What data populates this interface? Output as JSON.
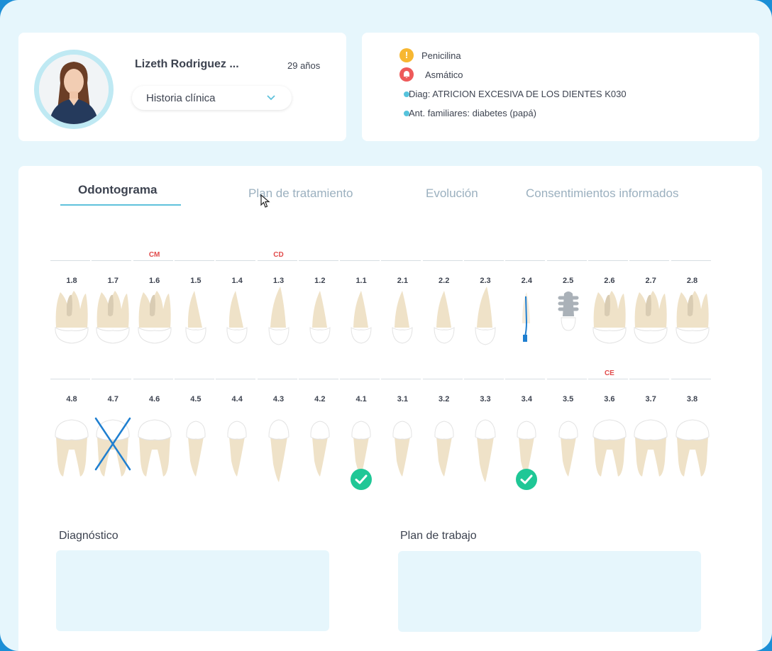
{
  "patient": {
    "name": "Lizeth Rodriguez ...",
    "age": "29 años",
    "record_select": "Historia clínica"
  },
  "alerts": [
    {
      "type": "warning",
      "icon": "exclamation-icon",
      "color": "#f7b731",
      "text": "Penicilina"
    },
    {
      "type": "danger",
      "icon": "bell-icon",
      "color": "#ee5a5a",
      "text": "Asmático"
    },
    {
      "type": "info",
      "icon": "dot-icon",
      "color": "#56c3dc",
      "text": "Diag: ATRICION EXCESIVA DE LOS DIENTES K030"
    },
    {
      "type": "info",
      "icon": "dot-icon",
      "color": "#56c3dc",
      "text": "Ant. familiares: diabetes (papá)"
    }
  ],
  "tabs": [
    {
      "label": "Odontograma",
      "active": true
    },
    {
      "label": "Plan de tratamiento",
      "active": false
    },
    {
      "label": "Evolución",
      "active": false
    },
    {
      "label": "Consentimientos informados",
      "active": false
    }
  ],
  "odontogram": {
    "upper": [
      {
        "num": "1.8",
        "label": "",
        "type": "molar"
      },
      {
        "num": "1.7",
        "label": "",
        "type": "molar"
      },
      {
        "num": "1.6",
        "label": "CM",
        "type": "molar"
      },
      {
        "num": "1.5",
        "label": "",
        "type": "premolar"
      },
      {
        "num": "1.4",
        "label": "",
        "type": "premolar"
      },
      {
        "num": "1.3",
        "label": "CD",
        "type": "canine"
      },
      {
        "num": "1.2",
        "label": "",
        "type": "incisor"
      },
      {
        "num": "1.1",
        "label": "",
        "type": "incisor"
      },
      {
        "num": "2.1",
        "label": "",
        "type": "incisor"
      },
      {
        "num": "2.2",
        "label": "",
        "type": "incisor"
      },
      {
        "num": "2.3",
        "label": "",
        "type": "canine"
      },
      {
        "num": "2.4",
        "label": "",
        "type": "endodontic"
      },
      {
        "num": "2.5",
        "label": "",
        "type": "implant"
      },
      {
        "num": "2.6",
        "label": "",
        "type": "molar"
      },
      {
        "num": "2.7",
        "label": "",
        "type": "molar"
      },
      {
        "num": "2.8",
        "label": "",
        "type": "molar"
      }
    ],
    "lower": [
      {
        "num": "4.8",
        "label": "",
        "type": "molar",
        "missing": false,
        "check": false
      },
      {
        "num": "4.7",
        "label": "",
        "type": "molar",
        "missing": true,
        "check": false
      },
      {
        "num": "4.6",
        "label": "",
        "type": "molar",
        "missing": false,
        "check": false
      },
      {
        "num": "4.5",
        "label": "",
        "type": "premolar",
        "missing": false,
        "check": false
      },
      {
        "num": "4.4",
        "label": "",
        "type": "premolar",
        "missing": false,
        "check": false
      },
      {
        "num": "4.3",
        "label": "",
        "type": "canine",
        "missing": false,
        "check": false
      },
      {
        "num": "4.2",
        "label": "",
        "type": "incisor",
        "missing": false,
        "check": false
      },
      {
        "num": "4.1",
        "label": "",
        "type": "incisor",
        "missing": false,
        "check": true
      },
      {
        "num": "3.1",
        "label": "",
        "type": "incisor",
        "missing": false,
        "check": false
      },
      {
        "num": "3.2",
        "label": "",
        "type": "incisor",
        "missing": false,
        "check": false
      },
      {
        "num": "3.3",
        "label": "",
        "type": "canine",
        "missing": false,
        "check": false
      },
      {
        "num": "3.4",
        "label": "",
        "type": "premolar",
        "missing": false,
        "check": true
      },
      {
        "num": "3.5",
        "label": "",
        "type": "premolar",
        "missing": false,
        "check": false
      },
      {
        "num": "3.6",
        "label": "CE",
        "type": "molar",
        "missing": false,
        "check": false
      },
      {
        "num": "3.7",
        "label": "",
        "type": "molar",
        "missing": false,
        "check": false
      },
      {
        "num": "3.8",
        "label": "",
        "type": "molar",
        "missing": false,
        "check": false
      }
    ]
  },
  "sections": {
    "diagnosis_title": "Diagnóstico",
    "plan_title": "Plan de trabajo"
  },
  "colors": {
    "accent": "#5fc2dc",
    "check": "#1fc796",
    "missing_x": "#1f7fd0",
    "endo": "#1f7fd0",
    "root": "#efe2c8",
    "label_red": "#e14b4b"
  }
}
